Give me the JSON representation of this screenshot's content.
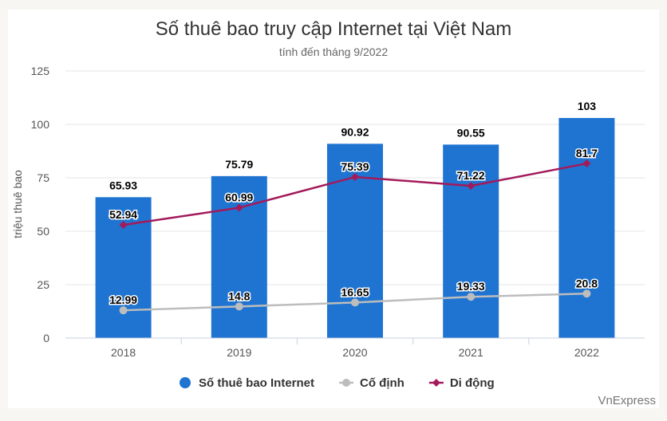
{
  "chart_data": {
    "type": "bar",
    "title": "Số thuê bao truy cập Internet tại Việt Nam",
    "subtitle": "tính đến tháng 9/2022",
    "ylabel": "triệu thuê bao",
    "xlabel": "",
    "categories": [
      "2018",
      "2019",
      "2020",
      "2021",
      "2022"
    ],
    "ylim": [
      0,
      125
    ],
    "yticks": [
      0,
      25,
      50,
      75,
      100,
      125
    ],
    "grid": true,
    "legend_position": "bottom",
    "series": [
      {
        "name": "Số thuê bao Internet",
        "type": "bar",
        "color": "#1f74d1",
        "values": [
          65.93,
          75.79,
          90.92,
          90.55,
          103
        ]
      },
      {
        "name": "Cố định",
        "type": "line",
        "color": "#bdbdbd",
        "values": [
          12.99,
          14.8,
          16.65,
          19.33,
          20.8
        ]
      },
      {
        "name": "Di động",
        "type": "line",
        "color": "#a31a5b",
        "values": [
          52.94,
          60.99,
          75.39,
          71.22,
          81.7
        ]
      }
    ],
    "source": "VnExpress"
  }
}
